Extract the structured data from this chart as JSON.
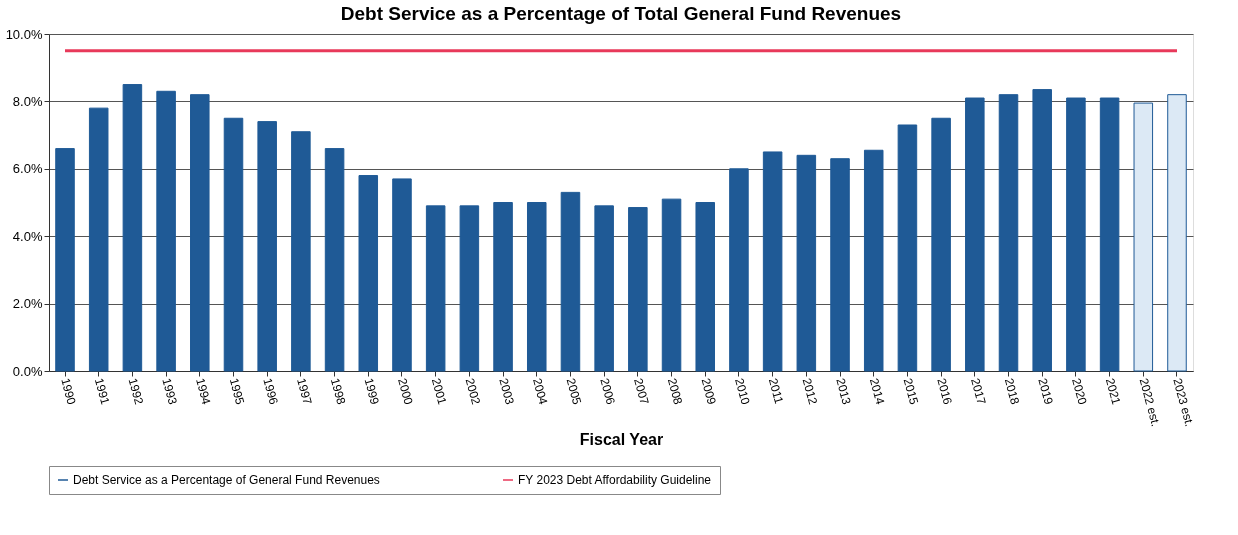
{
  "chart_data": {
    "type": "bar",
    "title": "Debt Service as a Percentage of Total General Fund Revenues",
    "xlabel": "Fiscal Year",
    "categories": [
      "1990",
      "1991",
      "1992",
      "1993",
      "1994",
      "1995",
      "1996",
      "1997",
      "1998",
      "1999",
      "2000",
      "2001",
      "2002",
      "2003",
      "2004",
      "2005",
      "2006",
      "2007",
      "2008",
      "2009",
      "2010",
      "2011",
      "2012",
      "2013",
      "2014",
      "2015",
      "2016",
      "2017",
      "2018",
      "2019",
      "2020",
      "2021",
      "2022 est.",
      "2023 est."
    ],
    "series": [
      {
        "name": "Debt Service as a Percentage of General Fund Revenues",
        "color": "#1f5a96",
        "colors": [
          "#1f5a96",
          "#1f5a96",
          "#1f5a96",
          "#1f5a96",
          "#1f5a96",
          "#1f5a96",
          "#1f5a96",
          "#1f5a96",
          "#1f5a96",
          "#1f5a96",
          "#1f5a96",
          "#1f5a96",
          "#1f5a96",
          "#1f5a96",
          "#1f5a96",
          "#1f5a96",
          "#1f5a96",
          "#1f5a96",
          "#1f5a96",
          "#1f5a96",
          "#1f5a96",
          "#1f5a96",
          "#1f5a96",
          "#1f5a96",
          "#1f5a96",
          "#1f5a96",
          "#1f5a96",
          "#1f5a96",
          "#1f5a96",
          "#1f5a96",
          "#1f5a96",
          "#1f5a96",
          "#dce9f5",
          "#dce9f5"
        ],
        "values": [
          6.6,
          7.8,
          8.5,
          8.3,
          8.2,
          7.5,
          7.4,
          7.1,
          6.6,
          5.8,
          5.7,
          4.9,
          4.9,
          5.0,
          5.0,
          5.3,
          4.9,
          4.85,
          5.1,
          5.0,
          6.0,
          6.5,
          6.4,
          6.3,
          6.55,
          7.3,
          7.5,
          8.1,
          8.2,
          8.35,
          8.1,
          8.1,
          7.95,
          8.2
        ]
      },
      {
        "name": "FY 2023 Debt Affordability Guideline",
        "type": "line",
        "color": "#e8395a",
        "values": [
          9.5,
          9.5,
          9.5,
          9.5,
          9.5,
          9.5,
          9.5,
          9.5,
          9.5,
          9.5,
          9.5,
          9.5,
          9.5,
          9.5,
          9.5,
          9.5,
          9.5,
          9.5,
          9.5,
          9.5,
          9.5,
          9.5,
          9.5,
          9.5,
          9.5,
          9.5,
          9.5,
          9.5,
          9.5,
          9.5,
          9.5,
          9.5,
          9.5,
          9.5
        ]
      }
    ],
    "ylim": [
      0,
      10
    ],
    "yticks": [
      {
        "value": 0,
        "label": "0.0%"
      },
      {
        "value": 2,
        "label": "2.0%"
      },
      {
        "value": 4,
        "label": "4.0%"
      },
      {
        "value": 6,
        "label": "6.0%"
      },
      {
        "value": 8,
        "label": "8.0%"
      },
      {
        "value": 10,
        "label": "10.0%"
      }
    ],
    "grid": "y",
    "legend": "bottom"
  }
}
